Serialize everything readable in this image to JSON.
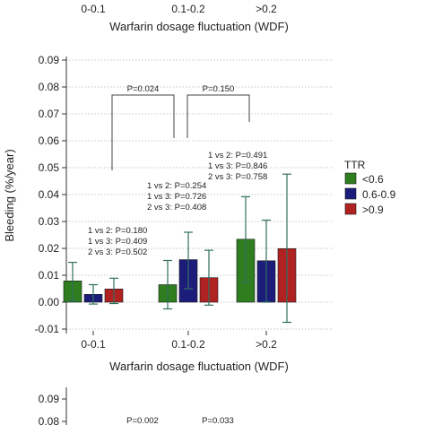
{
  "top_crop": {
    "categories": [
      "0-0.1",
      "0.1-0.2",
      ">0.2"
    ],
    "xlabel": "Warfarin dosage fluctuation (WDF)"
  },
  "bottom_crop": {
    "ytick_labels": [
      "0.09",
      "0.08"
    ],
    "pvalues": [
      "P=0.002",
      "P=0.033"
    ]
  },
  "chart_data": {
    "type": "bar",
    "title": "",
    "xlabel": "Warfarin dosage fluctuation (WDF)",
    "ylabel": "Bleeding (%/year)",
    "categories": [
      "0-0.1",
      "0.1-0.2",
      ">0.2"
    ],
    "ylim": [
      -0.01,
      0.09
    ],
    "yticks": [
      -0.01,
      0.0,
      0.01,
      0.02,
      0.03,
      0.04,
      0.05,
      0.06,
      0.07,
      0.08,
      0.09
    ],
    "ytick_labels": [
      "-0.01",
      "0.00",
      "0.01",
      "0.02",
      "0.03",
      "0.04",
      "0.05",
      "0.06",
      "0.07",
      "0.08",
      "0.09"
    ],
    "grid": true,
    "legend_title": "TTR",
    "legend_position": "right",
    "series": [
      {
        "name": "<0.6",
        "color": "#2e7d1f",
        "values": [
          0.0079,
          0.0065,
          0.0234
        ],
        "err_low": [
          0.0006,
          -0.0025,
          0.0075
        ],
        "err_high": [
          0.0148,
          0.0155,
          0.0392
        ]
      },
      {
        "name": "0.6-0.9",
        "color": "#1c1c7a",
        "values": [
          0.0029,
          0.0158,
          0.0154
        ],
        "err_low": [
          -0.0007,
          0.005,
          0.0
        ],
        "err_high": [
          0.0065,
          0.026,
          0.0305
        ]
      },
      {
        "name": ">0.9",
        "color": "#b02222",
        "values": [
          0.0049,
          0.0091,
          0.0199
        ],
        "err_low": [
          -0.0005,
          -0.0011,
          -0.0075
        ],
        "err_high": [
          0.0089,
          0.0193,
          0.0476
        ]
      }
    ],
    "group_annotations": [
      [
        "1 vs 2: P=0.180",
        "1 vs 3: P=0.409",
        "2 vs 3: P=0.502"
      ],
      [
        "1 vs 2: P=0.254",
        "1 vs 3: P=0.726",
        "2 vs 3: P=0.408"
      ],
      [
        "1 vs 2: P=0.491",
        "1 vs 3: P=0.846",
        "2 vs 3: P=0.758"
      ]
    ],
    "brackets": [
      {
        "label": "P=0.024",
        "from": "0-0.1",
        "to": "0.1-0.2"
      },
      {
        "label": "P=0.150",
        "from": "0.1-0.2",
        "to": ">0.2"
      }
    ]
  }
}
